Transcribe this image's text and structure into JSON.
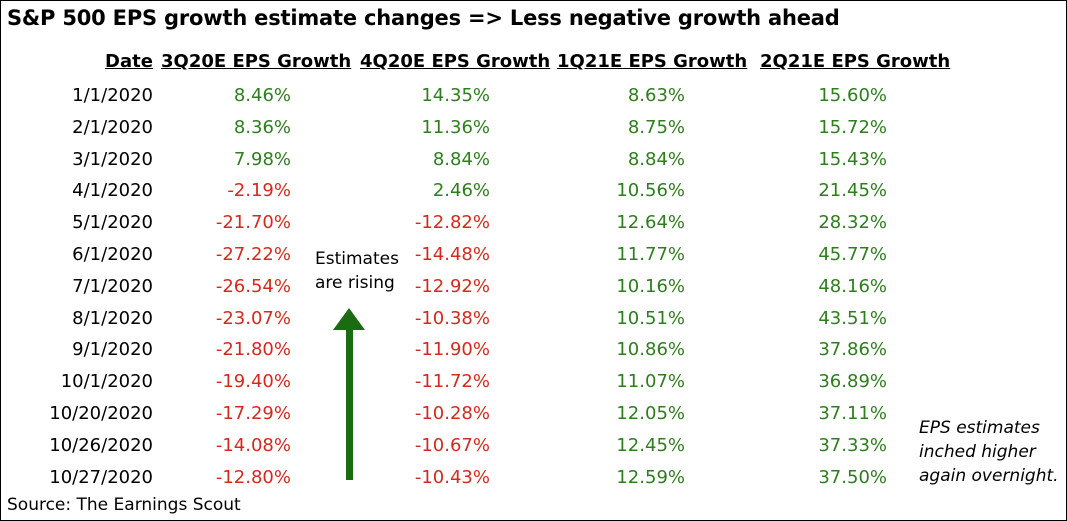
{
  "title": "S&P 500 EPS growth estimate changes => Less negative growth ahead",
  "source": "Source: The Earnings Scout",
  "annotations": {
    "rising_line1": "Estimates",
    "rising_line2": "are rising",
    "overnight_line1": "EPS estimates",
    "overnight_line2": "inched higher",
    "overnight_line3": "again overnight."
  },
  "colors": {
    "positive": "#2e7d1e",
    "negative": "#d32a1f",
    "arrow": "#1a6b12"
  },
  "chart_data": {
    "type": "table",
    "columns": [
      "Date",
      "3Q20E EPS Growth",
      "4Q20E EPS Growth",
      "1Q21E EPS Growth",
      "2Q21E EPS Growth"
    ],
    "rows": [
      [
        "1/1/2020",
        "8.46%",
        "14.35%",
        "8.63%",
        "15.60%"
      ],
      [
        "2/1/2020",
        "8.36%",
        "11.36%",
        "8.75%",
        "15.72%"
      ],
      [
        "3/1/2020",
        "7.98%",
        "8.84%",
        "8.84%",
        "15.43%"
      ],
      [
        "4/1/2020",
        "-2.19%",
        "2.46%",
        "10.56%",
        "21.45%"
      ],
      [
        "5/1/2020",
        "-21.70%",
        "-12.82%",
        "12.64%",
        "28.32%"
      ],
      [
        "6/1/2020",
        "-27.22%",
        "-14.48%",
        "11.77%",
        "45.77%"
      ],
      [
        "7/1/2020",
        "-26.54%",
        "-12.92%",
        "10.16%",
        "48.16%"
      ],
      [
        "8/1/2020",
        "-23.07%",
        "-10.38%",
        "10.51%",
        "43.51%"
      ],
      [
        "9/1/2020",
        "-21.80%",
        "-11.90%",
        "10.86%",
        "37.86%"
      ],
      [
        "10/1/2020",
        "-19.40%",
        "-11.72%",
        "11.07%",
        "36.89%"
      ],
      [
        "10/20/2020",
        "-17.29%",
        "-10.28%",
        "12.05%",
        "37.11%"
      ],
      [
        "10/26/2020",
        "-14.08%",
        "-10.67%",
        "12.45%",
        "37.33%"
      ],
      [
        "10/27/2020",
        "-12.80%",
        "-10.43%",
        "12.59%",
        "37.50%"
      ]
    ]
  }
}
